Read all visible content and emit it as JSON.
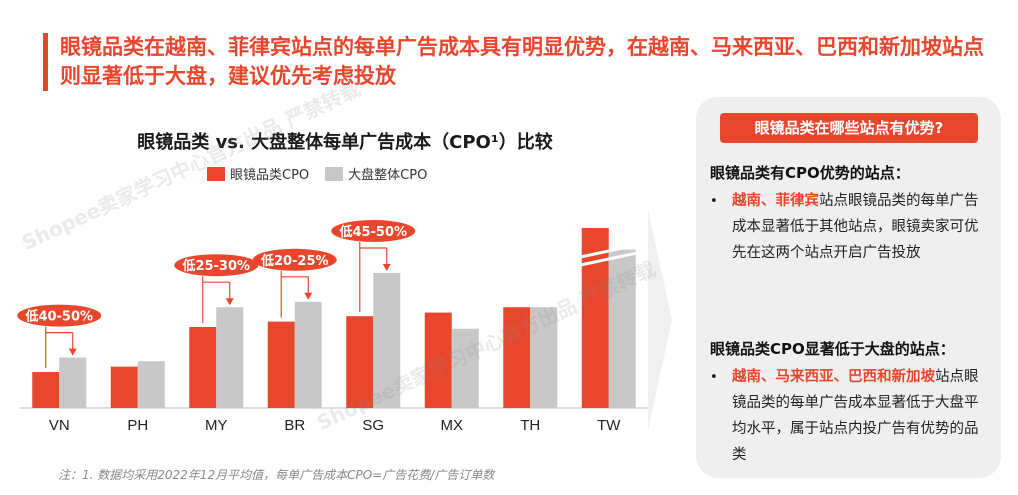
{
  "headline": "眼镜品类在越南、菲律宾站点的每单广告成本具有明显优势，在越南、马来西亚、巴西和新加坡站点则显著低于大盘，建议优先考虑投放",
  "chart_data": {
    "type": "bar",
    "title": "眼镜品类 vs. 大盘整体每单广告成本（CPO¹）比较",
    "categories": [
      "VN",
      "PH",
      "MY",
      "BR",
      "SG",
      "MX",
      "TH",
      "TW"
    ],
    "series": [
      {
        "name": "眼镜品类CPO",
        "color": "#e8472e",
        "values": [
          20,
          23,
          45,
          48,
          51,
          53,
          56,
          100
        ]
      },
      {
        "name": "大盘整体CPO",
        "color": "#c8c8c8",
        "values": [
          28,
          26,
          56,
          59,
          75,
          44,
          56,
          88
        ]
      }
    ],
    "axis_break_category": "TW",
    "ylim": [
      0,
      100
    ],
    "annotations": [
      {
        "category": "VN",
        "label": "低40-50%"
      },
      {
        "category": "MY",
        "label": "低25-30%"
      },
      {
        "category": "BR",
        "label": "低20-25%"
      },
      {
        "category": "SG",
        "label": "低45-50%"
      }
    ],
    "xlabel": "",
    "ylabel": "",
    "grid": false,
    "legend_position": "top-left"
  },
  "panel": {
    "header": "眼镜品类在哪些站点有优势?",
    "section1_title": "眼镜品类有CPO优势的站点：",
    "section1_highlight": "越南、菲律宾",
    "section1_text": "站点眼镜品类的每单广告成本显著低于其他站点，眼镜卖家可优先在这两个站点开启广告投放",
    "section2_title": "眼镜品类CPO显著低于大盘的站点：",
    "section2_highlight": "越南、马来西亚、巴西和新加坡",
    "section2_text": "站点眼镜品类的每单广告成本显著低于大盘平均水平，属于站点内投广告有优势的品类",
    "bullet": "•"
  },
  "note": "注：1. 数据均采用2022年12月平均值，每单广告成本CPO=广告花费/广告订单数",
  "watermark": "Shopee卖家学习中心官方出品 严禁转载",
  "colors": {
    "accent": "#e8472e",
    "gray": "#c8c8c8"
  }
}
